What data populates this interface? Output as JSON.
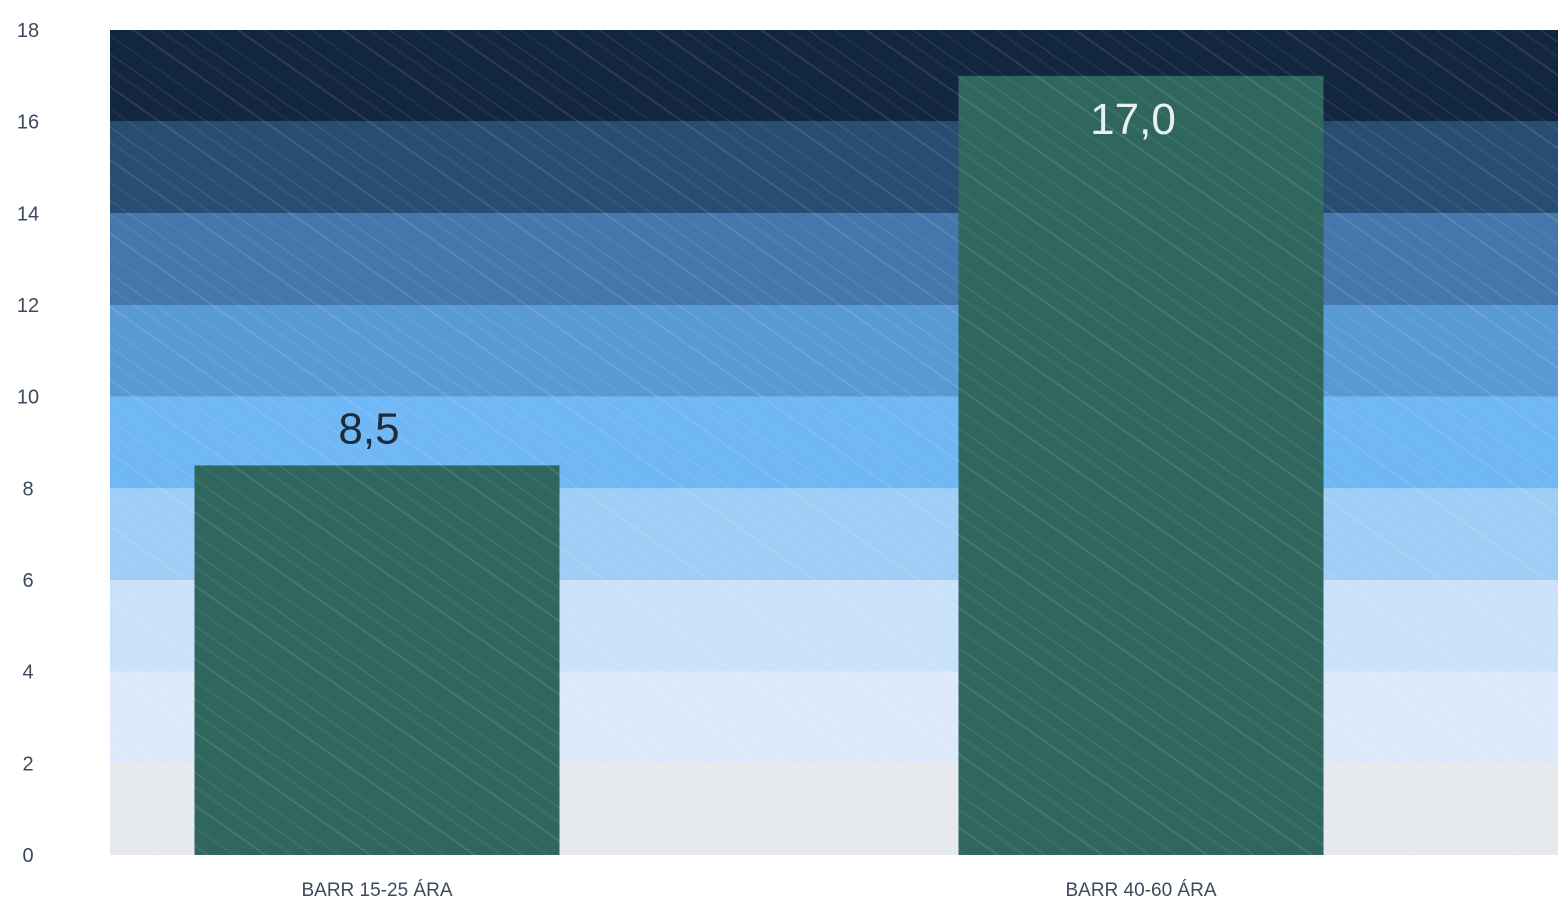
{
  "chart_data": {
    "type": "bar",
    "categories": [
      "BARR 15-25 ÁRA",
      "BARR 40-60 ÁRA"
    ],
    "values": [
      8.5,
      17.0
    ],
    "value_labels": [
      "8,5",
      "17,0"
    ],
    "ylim": [
      0,
      18
    ],
    "yticks": [
      "0",
      "2",
      "4",
      "6",
      "8",
      "10",
      "12",
      "14",
      "16",
      "18"
    ],
    "title": "",
    "xlabel": "",
    "ylabel": "",
    "grid": false,
    "legend": "none",
    "colors": {
      "bar": "#2f675f",
      "band_colors": [
        "#e6e9ee",
        "#dde9fa",
        "#c9e1fb",
        "#a0cdf6",
        "#6fb7f5",
        "#5a9ad4",
        "#4677ac",
        "#284d72",
        "#13263f"
      ],
      "tick_text": "#3b4a5c",
      "value_label_inside": "#e8f1ee",
      "value_label_above": "#1d2a38"
    }
  }
}
